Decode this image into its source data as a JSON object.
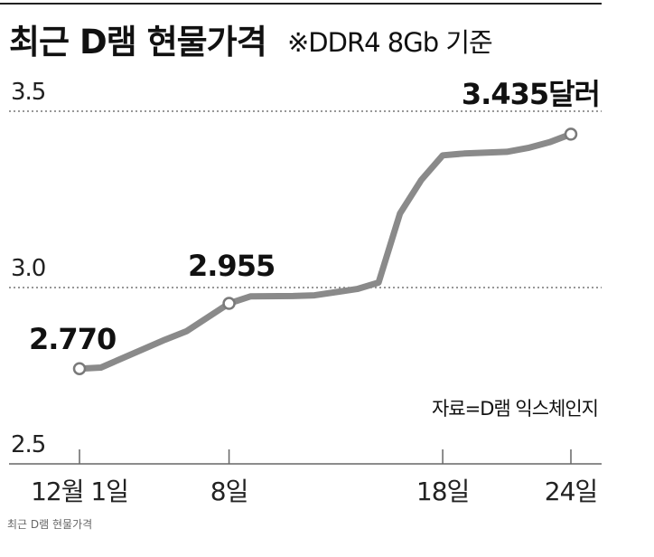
{
  "caption": "최근 D램 현물가격",
  "chart_data": {
    "type": "line",
    "title": "최근 D램 현물가격",
    "subtitle": "※DDR4 8Gb 기준",
    "source": "자료=D램 익스체인지",
    "ylim": [
      2.5,
      3.5
    ],
    "yticks": [
      "3.5",
      "3.0",
      "2.5"
    ],
    "xticks": [
      {
        "x": 1,
        "label": "12월 1일"
      },
      {
        "x": 8,
        "label": "8일"
      },
      {
        "x": 18,
        "label": "18일"
      },
      {
        "x": 24,
        "label": "24일"
      }
    ],
    "x": [
      1,
      2,
      5,
      6,
      8,
      9,
      11,
      12,
      14,
      15,
      16,
      17,
      18,
      19,
      21,
      22,
      23,
      24
    ],
    "values": [
      2.77,
      2.773,
      2.852,
      2.876,
      2.955,
      2.975,
      2.976,
      2.978,
      2.996,
      3.014,
      3.21,
      3.305,
      3.375,
      3.38,
      3.385,
      3.396,
      3.412,
      3.435
    ],
    "annotations": [
      {
        "x": 1,
        "y": 2.77,
        "label": "2.770"
      },
      {
        "x": 8,
        "y": 2.955,
        "label": "2.955"
      },
      {
        "x": 24,
        "y": 3.435,
        "label": "3.435달러"
      }
    ],
    "grid": true,
    "colors": {
      "line": "#8a8a8a",
      "marker_fill": "#ffffff",
      "marker_stroke": "#7a7a7a",
      "grid": "#777777"
    }
  }
}
